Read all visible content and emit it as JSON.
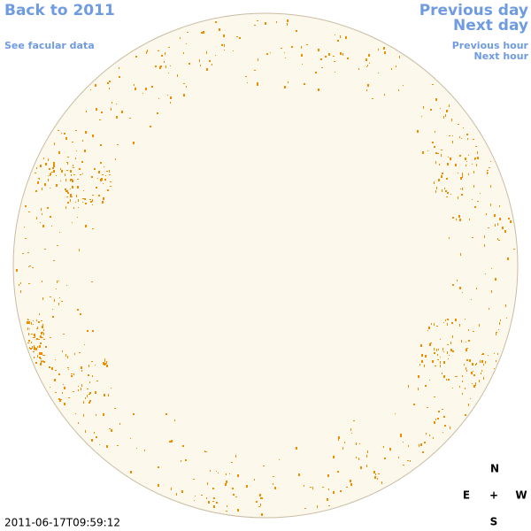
{
  "nav": {
    "back": "Back to 2011",
    "facular": "See facular data",
    "previous_day": "Previous day",
    "next_day": "Next day",
    "previous_hour": "Previous hour",
    "next_hour": "Next hour"
  },
  "compass": {
    "north": "N",
    "east": "E",
    "center": "+",
    "west": "W",
    "south": "S"
  },
  "timestamp": "2011-06-17T09:59:12"
}
